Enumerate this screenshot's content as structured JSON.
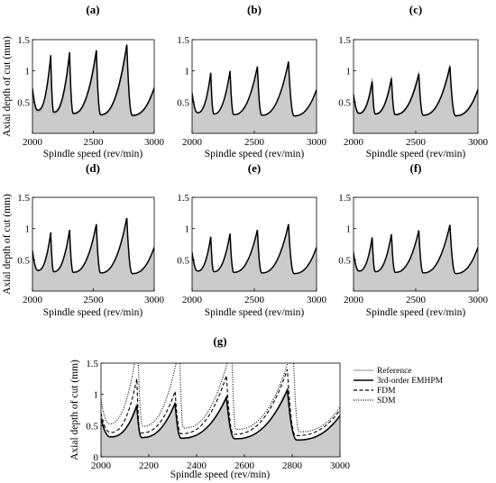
{
  "chart_data": [
    {
      "id": "a",
      "type": "line",
      "panel_label": "(a)",
      "xlabel": "Spindle speed (rev/min)",
      "ylabel": "Axial depth of cut (mm)",
      "xlim": [
        2000,
        3000
      ],
      "ylim": [
        0,
        1.5
      ],
      "xticks": [
        2000,
        2500,
        3000
      ],
      "yticks": [
        0.5,
        1,
        1.5
      ],
      "ytick_labels": [
        "0.5",
        "1",
        "1.5"
      ],
      "lobes": [
        [
          2000,
          0.72
        ],
        [
          2045,
          0.37
        ],
        [
          2150,
          1.25
        ],
        [
          2175,
          0.34
        ],
        [
          2305,
          1.3
        ],
        [
          2335,
          0.32
        ],
        [
          2525,
          1.33
        ],
        [
          2560,
          0.3
        ],
        [
          2775,
          1.42
        ],
        [
          2820,
          0.29
        ],
        [
          3000,
          0.73
        ]
      ],
      "ref_lobes": [
        [
          2000,
          0.68
        ],
        [
          2040,
          0.34
        ],
        [
          2150,
          1.2
        ],
        [
          2175,
          0.31
        ],
        [
          2305,
          1.22
        ],
        [
          2335,
          0.3
        ],
        [
          2525,
          1.25
        ],
        [
          2560,
          0.28
        ],
        [
          2775,
          1.33
        ],
        [
          2820,
          0.27
        ],
        [
          3000,
          0.7
        ]
      ]
    },
    {
      "id": "b",
      "type": "line",
      "panel_label": "(b)",
      "xlabel": "Spindle speed (rev/min)",
      "ylabel": "",
      "xlim": [
        2000,
        3000
      ],
      "ylim": [
        0,
        1.5
      ],
      "xticks": [
        2000,
        2500,
        3000
      ],
      "yticks": [
        0.5,
        1,
        1.5
      ],
      "ytick_labels": [
        "0.5",
        "1",
        "1.5"
      ],
      "lobes": [
        [
          2000,
          0.65
        ],
        [
          2045,
          0.33
        ],
        [
          2150,
          0.97
        ],
        [
          2175,
          0.31
        ],
        [
          2305,
          1.0
        ],
        [
          2335,
          0.3
        ],
        [
          2525,
          1.07
        ],
        [
          2560,
          0.29
        ],
        [
          2775,
          1.15
        ],
        [
          2820,
          0.28
        ],
        [
          3000,
          0.7
        ]
      ]
    },
    {
      "id": "c",
      "type": "line",
      "panel_label": "(c)",
      "xlabel": "Spindle speed (rev/min)",
      "ylabel": "",
      "xlim": [
        2000,
        3000
      ],
      "ylim": [
        0,
        1.5
      ],
      "xticks": [
        2000,
        2500,
        3000
      ],
      "yticks": [
        0.5,
        1,
        1.5
      ],
      "ytick_labels": [
        "0.5",
        "1",
        "1.5"
      ],
      "lobes": [
        [
          2000,
          0.62
        ],
        [
          2045,
          0.32
        ],
        [
          2150,
          0.83
        ],
        [
          2175,
          0.31
        ],
        [
          2305,
          0.88
        ],
        [
          2335,
          0.3
        ],
        [
          2525,
          0.95
        ],
        [
          2560,
          0.29
        ],
        [
          2775,
          1.07
        ],
        [
          2820,
          0.28
        ],
        [
          3000,
          0.7
        ]
      ],
      "ref_lobes": [
        [
          2000,
          0.64
        ],
        [
          2045,
          0.33
        ],
        [
          2150,
          0.88
        ],
        [
          2175,
          0.32
        ],
        [
          2305,
          0.92
        ],
        [
          2335,
          0.31
        ],
        [
          2525,
          0.99
        ],
        [
          2560,
          0.3
        ],
        [
          2775,
          1.1
        ],
        [
          2820,
          0.29
        ],
        [
          3000,
          0.72
        ]
      ]
    },
    {
      "id": "d",
      "type": "line",
      "panel_label": "(d)",
      "xlabel": "Spindle speed (rev/min)",
      "ylabel": "Axial depth of cut (mm)",
      "xlim": [
        2000,
        3000
      ],
      "ylim": [
        0,
        1.5
      ],
      "xticks": [
        2000,
        2500,
        3000
      ],
      "yticks": [
        0.5,
        1,
        1.5
      ],
      "ytick_labels": [
        "0.5",
        "1",
        "1.5"
      ],
      "lobes": [
        [
          2000,
          0.65
        ],
        [
          2045,
          0.33
        ],
        [
          2150,
          0.94
        ],
        [
          2175,
          0.31
        ],
        [
          2305,
          0.98
        ],
        [
          2335,
          0.3
        ],
        [
          2525,
          1.07
        ],
        [
          2560,
          0.29
        ],
        [
          2775,
          1.17
        ],
        [
          2820,
          0.28
        ],
        [
          3000,
          0.7
        ]
      ]
    },
    {
      "id": "e",
      "type": "line",
      "panel_label": "(e)",
      "xlabel": "Spindle speed (rev/min)",
      "ylabel": "",
      "xlim": [
        2000,
        3000
      ],
      "ylim": [
        0,
        1.5
      ],
      "xticks": [
        2000,
        2500,
        3000
      ],
      "yticks": [
        0.5,
        1,
        1.5
      ],
      "ytick_labels": [
        "0.5",
        "1",
        "1.5"
      ],
      "lobes": [
        [
          2000,
          0.62
        ],
        [
          2045,
          0.32
        ],
        [
          2150,
          0.87
        ],
        [
          2175,
          0.31
        ],
        [
          2305,
          0.92
        ],
        [
          2335,
          0.3
        ],
        [
          2525,
          0.98
        ],
        [
          2560,
          0.29
        ],
        [
          2775,
          1.07
        ],
        [
          2820,
          0.28
        ],
        [
          3000,
          0.7
        ]
      ]
    },
    {
      "id": "f",
      "type": "line",
      "panel_label": "(f)",
      "xlabel": "Spindle speed (rev/min)",
      "ylabel": "",
      "xlim": [
        2000,
        3000
      ],
      "ylim": [
        0,
        1.5
      ],
      "xticks": [
        2000,
        2500,
        3000
      ],
      "yticks": [
        0.5,
        1,
        1.5
      ],
      "ytick_labels": [
        "0.5",
        "1",
        "1.5"
      ],
      "lobes": [
        [
          2000,
          0.62
        ],
        [
          2045,
          0.32
        ],
        [
          2150,
          0.86
        ],
        [
          2175,
          0.31
        ],
        [
          2305,
          0.91
        ],
        [
          2335,
          0.3
        ],
        [
          2525,
          0.97
        ],
        [
          2560,
          0.29
        ],
        [
          2775,
          1.06
        ],
        [
          2820,
          0.28
        ],
        [
          3000,
          0.7
        ]
      ]
    },
    {
      "id": "g",
      "type": "line",
      "panel_label": "(g)",
      "xlabel": "Spindle speed (rev/min)",
      "ylabel": "Axial depth of cut (mm)",
      "xlim": [
        2000,
        3000
      ],
      "ylim": [
        0,
        1.5
      ],
      "xticks": [
        2000,
        2200,
        2400,
        2600,
        2800,
        3000
      ],
      "yticks": [
        0,
        0.5,
        1,
        1.5
      ],
      "ytick_labels": [
        "0",
        "0.5",
        "1",
        "1.5"
      ],
      "legend": [
        "Reference",
        "3rd-order EMHPM",
        "FDM",
        "SDM"
      ],
      "legend_position": "outside-right",
      "series": [
        {
          "name": "Reference",
          "style": "gray",
          "lobes": [
            [
              2000,
              0.6
            ],
            [
              2040,
              0.31
            ],
            [
              2150,
              0.86
            ],
            [
              2170,
              0.3
            ],
            [
              2310,
              0.88
            ],
            [
              2335,
              0.29
            ],
            [
              2525,
              0.98
            ],
            [
              2560,
              0.28
            ],
            [
              2780,
              1.1
            ],
            [
              2820,
              0.26
            ],
            [
              3000,
              0.65
            ]
          ]
        },
        {
          "name": "3rd-order EMHPM",
          "style": "solid",
          "lobes": [
            [
              2000,
              0.62
            ],
            [
              2040,
              0.32
            ],
            [
              2150,
              0.82
            ],
            [
              2170,
              0.31
            ],
            [
              2310,
              0.86
            ],
            [
              2335,
              0.3
            ],
            [
              2525,
              0.95
            ],
            [
              2560,
              0.29
            ],
            [
              2780,
              1.07
            ],
            [
              2820,
              0.27
            ],
            [
              3000,
              0.66
            ]
          ]
        },
        {
          "name": "FDM",
          "style": "dashed",
          "lobes": [
            [
              2000,
              0.7
            ],
            [
              2040,
              0.39
            ],
            [
              2150,
              1.25
            ],
            [
              2165,
              0.38
            ],
            [
              2310,
              1.05
            ],
            [
              2335,
              0.37
            ],
            [
              2525,
              1.3
            ],
            [
              2555,
              0.36
            ],
            [
              2780,
              1.4
            ],
            [
              2815,
              0.34
            ],
            [
              3000,
              0.75
            ]
          ]
        },
        {
          "name": "SDM",
          "style": "dotted",
          "lobes": [
            [
              2000,
              0.92
            ],
            [
              2035,
              0.53
            ],
            [
              2145,
              1.6
            ],
            [
              2155,
              1.6
            ],
            [
              2175,
              0.49
            ],
            [
              2320,
              1.6
            ],
            [
              2330,
              1.6
            ],
            [
              2345,
              0.46
            ],
            [
              2535,
              1.6
            ],
            [
              2548,
              1.6
            ],
            [
              2565,
              0.44
            ],
            [
              2790,
              1.6
            ],
            [
              2805,
              1.6
            ],
            [
              2830,
              0.4
            ],
            [
              3000,
              0.8
            ]
          ]
        }
      ]
    }
  ]
}
